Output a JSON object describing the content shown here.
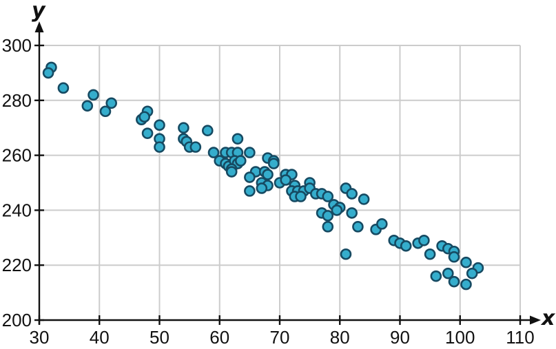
{
  "chart_data": {
    "type": "scatter",
    "title": "",
    "xlabel": "x",
    "ylabel": "y",
    "xlim": [
      30,
      110
    ],
    "ylim": [
      200,
      300
    ],
    "x_ticks": [
      30,
      40,
      50,
      60,
      70,
      80,
      90,
      100,
      110
    ],
    "y_ticks": [
      200,
      220,
      240,
      260,
      280,
      300
    ],
    "grid": true,
    "legend": false,
    "colors": {
      "point_fill": "#35ADCC",
      "point_border": "#164A62",
      "grid": "#cccccc",
      "axis": "#111111",
      "background": "#ffffff"
    },
    "points": [
      [
        32,
        292
      ],
      [
        31.5,
        290
      ],
      [
        34,
        284.5
      ],
      [
        38,
        278
      ],
      [
        39,
        282
      ],
      [
        41,
        276
      ],
      [
        42,
        279
      ],
      [
        47,
        273
      ],
      [
        48,
        276
      ],
      [
        47.5,
        274
      ],
      [
        48,
        268
      ],
      [
        50,
        271
      ],
      [
        50,
        266
      ],
      [
        50,
        263
      ],
      [
        54,
        270
      ],
      [
        54,
        266
      ],
      [
        54.5,
        265
      ],
      [
        55,
        263
      ],
      [
        56,
        263
      ],
      [
        58,
        269
      ],
      [
        59,
        261
      ],
      [
        61,
        261
      ],
      [
        62,
        261
      ],
      [
        63,
        261
      ],
      [
        65,
        261
      ],
      [
        63,
        266
      ],
      [
        60,
        258
      ],
      [
        61,
        257
      ],
      [
        61.5,
        256
      ],
      [
        62.5,
        258
      ],
      [
        63,
        257
      ],
      [
        63.5,
        258
      ],
      [
        62,
        255
      ],
      [
        62,
        254
      ],
      [
        66,
        254
      ],
      [
        65,
        252
      ],
      [
        65,
        247
      ],
      [
        67.5,
        254
      ],
      [
        68,
        253
      ],
      [
        68,
        259
      ],
      [
        69,
        258
      ],
      [
        69,
        257
      ],
      [
        67,
        250
      ],
      [
        68,
        249
      ],
      [
        67,
        248
      ],
      [
        70,
        250
      ],
      [
        71,
        253
      ],
      [
        72,
        253
      ],
      [
        71,
        251
      ],
      [
        72.5,
        249
      ],
      [
        72,
        247
      ],
      [
        73,
        247
      ],
      [
        74,
        247
      ],
      [
        72.5,
        245
      ],
      [
        73.5,
        245
      ],
      [
        75,
        250
      ],
      [
        75,
        248
      ],
      [
        76,
        246
      ],
      [
        77,
        246
      ],
      [
        78,
        245
      ],
      [
        79,
        242
      ],
      [
        80,
        241
      ],
      [
        79.5,
        240
      ],
      [
        77,
        239
      ],
      [
        78,
        238
      ],
      [
        78,
        234
      ],
      [
        81,
        248
      ],
      [
        82,
        246
      ],
      [
        84,
        244
      ],
      [
        82,
        239
      ],
      [
        83,
        234
      ],
      [
        81,
        224
      ],
      [
        86,
        233
      ],
      [
        87,
        235
      ],
      [
        89,
        229
      ],
      [
        90,
        228
      ],
      [
        91,
        227
      ],
      [
        93,
        228
      ],
      [
        94,
        229
      ],
      [
        95,
        224
      ],
      [
        97,
        227
      ],
      [
        98,
        226
      ],
      [
        99,
        225
      ],
      [
        99,
        223
      ],
      [
        96,
        216
      ],
      [
        98,
        217
      ],
      [
        99,
        214
      ],
      [
        101,
        221
      ],
      [
        103,
        219
      ],
      [
        102,
        217
      ],
      [
        101,
        213
      ]
    ]
  }
}
